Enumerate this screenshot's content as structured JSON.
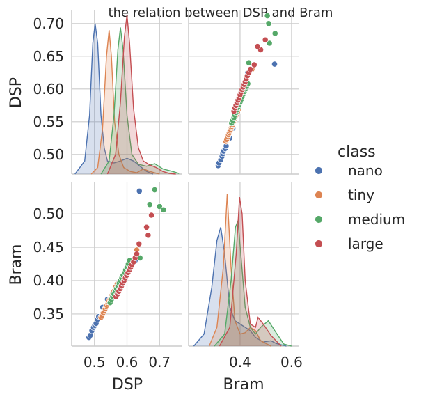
{
  "chart_data": {
    "type": "pairplot",
    "title": "the relation between DSP and Bram",
    "variables": [
      "DSP",
      "Bram"
    ],
    "axes": {
      "DSP": {
        "ticks": [
          0.5,
          0.6,
          0.7
        ],
        "tick_labels": [
          "0.5",
          "0.6",
          "0.7"
        ],
        "y_ticks": [
          0.5,
          0.55,
          0.6,
          0.65,
          0.7
        ],
        "y_tick_labels": [
          "0.50",
          "0.55",
          "0.60",
          "0.65",
          "0.70"
        ],
        "range": [
          0.43,
          0.77
        ],
        "y_range": [
          0.47,
          0.72
        ]
      },
      "Bram": {
        "ticks": [
          0.4,
          0.6
        ],
        "tick_labels": [
          "0.4",
          "0.6"
        ],
        "x_range": [
          0.2,
          0.63
        ],
        "y_ticks": [
          0.35,
          0.4,
          0.45,
          0.5
        ],
        "y_tick_labels": [
          "0.35",
          "0.40",
          "0.45",
          "0.50"
        ],
        "y_range": [
          0.302,
          0.547
        ]
      }
    },
    "grid": true,
    "legend": {
      "title": "class",
      "placement": "right"
    },
    "series": [
      {
        "name": "nano",
        "color": "#4c72b0",
        "DSP": [
          0.483,
          0.487,
          0.492,
          0.497,
          0.501,
          0.505,
          0.509,
          0.513,
          0.525,
          0.54,
          0.555,
          0.565,
          0.575,
          0.585,
          0.595,
          0.61,
          0.625,
          0.638
        ],
        "Bram": [
          0.315,
          0.318,
          0.325,
          0.33,
          0.333,
          0.336,
          0.342,
          0.346,
          0.36,
          0.372,
          0.38,
          0.388,
          0.395,
          0.404,
          0.41,
          0.42,
          0.43,
          0.534
        ],
        "dsp_kde": {
          "peak": 0.7,
          "points": [
            [
              0.44,
              0.47
            ],
            [
              0.47,
              0.49
            ],
            [
              0.485,
              0.56
            ],
            [
              0.495,
              0.67
            ],
            [
              0.502,
              0.7
            ],
            [
              0.51,
              0.67
            ],
            [
              0.52,
              0.56
            ],
            [
              0.53,
              0.51
            ],
            [
              0.54,
              0.49
            ],
            [
              0.56,
              0.487
            ],
            [
              0.58,
              0.49
            ],
            [
              0.6,
              0.494
            ],
            [
              0.62,
              0.49
            ],
            [
              0.64,
              0.482
            ],
            [
              0.66,
              0.474
            ],
            [
              0.68,
              0.47
            ]
          ]
        },
        "bram_kde": {
          "points": [
            [
              0.22,
              0.302
            ],
            [
              0.26,
              0.32
            ],
            [
              0.29,
              0.39
            ],
            [
              0.31,
              0.46
            ],
            [
              0.325,
              0.48
            ],
            [
              0.34,
              0.44
            ],
            [
              0.36,
              0.36
            ],
            [
              0.38,
              0.34
            ],
            [
              0.4,
              0.335
            ],
            [
              0.42,
              0.33
            ],
            [
              0.44,
              0.325
            ],
            [
              0.46,
              0.315
            ],
            [
              0.49,
              0.308
            ],
            [
              0.52,
              0.31
            ],
            [
              0.54,
              0.306
            ],
            [
              0.58,
              0.302
            ]
          ]
        }
      },
      {
        "name": "tiny",
        "color": "#dd8452",
        "DSP": [
          0.52,
          0.523,
          0.527,
          0.53,
          0.533,
          0.536,
          0.538,
          0.541,
          0.543,
          0.545,
          0.548,
          0.551,
          0.554,
          0.557,
          0.56,
          0.565,
          0.57,
          0.584,
          0.6,
          0.63
        ],
        "Bram": [
          0.345,
          0.348,
          0.352,
          0.355,
          0.358,
          0.361,
          0.363,
          0.366,
          0.368,
          0.37,
          0.372,
          0.375,
          0.378,
          0.381,
          0.384,
          0.39,
          0.395,
          0.403,
          0.412,
          0.446
        ],
        "dsp_kde": {
          "points": [
            [
              0.49,
              0.47
            ],
            [
              0.51,
              0.48
            ],
            [
              0.525,
              0.54
            ],
            [
              0.537,
              0.65
            ],
            [
              0.545,
              0.69
            ],
            [
              0.552,
              0.65
            ],
            [
              0.562,
              0.55
            ],
            [
              0.575,
              0.5
            ],
            [
              0.59,
              0.48
            ],
            [
              0.61,
              0.474
            ],
            [
              0.63,
              0.472
            ],
            [
              0.65,
              0.478
            ],
            [
              0.67,
              0.474
            ],
            [
              0.7,
              0.47
            ]
          ]
        },
        "bram_kde": {
          "points": [
            [
              0.28,
              0.302
            ],
            [
              0.31,
              0.33
            ],
            [
              0.335,
              0.42
            ],
            [
              0.35,
              0.53
            ],
            [
              0.365,
              0.42
            ],
            [
              0.38,
              0.34
            ],
            [
              0.4,
              0.32
            ],
            [
              0.42,
              0.322
            ],
            [
              0.44,
              0.33
            ],
            [
              0.46,
              0.325
            ],
            [
              0.48,
              0.31
            ],
            [
              0.52,
              0.302
            ]
          ]
        }
      },
      {
        "name": "medium",
        "color": "#55a868",
        "DSP": [
          0.548,
          0.552,
          0.556,
          0.56,
          0.564,
          0.568,
          0.572,
          0.576,
          0.58,
          0.584,
          0.588,
          0.592,
          0.596,
          0.6,
          0.604,
          0.608,
          0.64,
          0.67,
          0.685,
          0.7,
          0.712
        ],
        "Bram": [
          0.367,
          0.372,
          0.376,
          0.38,
          0.384,
          0.388,
          0.392,
          0.396,
          0.4,
          0.404,
          0.408,
          0.412,
          0.416,
          0.42,
          0.425,
          0.43,
          0.434,
          0.514,
          0.536,
          0.511,
          0.506
        ],
        "dsp_kde": {
          "points": [
            [
              0.52,
              0.47
            ],
            [
              0.545,
              0.49
            ],
            [
              0.56,
              0.56
            ],
            [
              0.572,
              0.66
            ],
            [
              0.58,
              0.694
            ],
            [
              0.588,
              0.66
            ],
            [
              0.6,
              0.56
            ],
            [
              0.615,
              0.5
            ],
            [
              0.635,
              0.485
            ],
            [
              0.66,
              0.482
            ],
            [
              0.685,
              0.486
            ],
            [
              0.71,
              0.478
            ],
            [
              0.74,
              0.474
            ],
            [
              0.76,
              0.471
            ]
          ]
        },
        "bram_kde": {
          "points": [
            [
              0.3,
              0.302
            ],
            [
              0.34,
              0.32
            ],
            [
              0.365,
              0.4
            ],
            [
              0.382,
              0.48
            ],
            [
              0.392,
              0.49
            ],
            [
              0.405,
              0.43
            ],
            [
              0.42,
              0.36
            ],
            [
              0.44,
              0.33
            ],
            [
              0.46,
              0.32
            ],
            [
              0.48,
              0.33
            ],
            [
              0.51,
              0.34
            ],
            [
              0.54,
              0.322
            ],
            [
              0.57,
              0.305
            ],
            [
              0.6,
              0.302
            ]
          ]
        }
      },
      {
        "name": "large",
        "color": "#c44e52",
        "DSP": [
          0.566,
          0.571,
          0.575,
          0.579,
          0.583,
          0.587,
          0.591,
          0.595,
          0.599,
          0.603,
          0.607,
          0.611,
          0.615,
          0.62,
          0.625,
          0.63,
          0.637,
          0.66,
          0.675,
          0.665
        ],
        "Bram": [
          0.376,
          0.38,
          0.384,
          0.388,
          0.392,
          0.396,
          0.4,
          0.404,
          0.408,
          0.412,
          0.416,
          0.42,
          0.424,
          0.428,
          0.434,
          0.44,
          0.455,
          0.48,
          0.498,
          0.468
        ],
        "dsp_kde": {
          "points": [
            [
              0.54,
              0.47
            ],
            [
              0.565,
              0.5
            ],
            [
              0.58,
              0.58
            ],
            [
              0.592,
              0.68
            ],
            [
              0.6,
              0.713
            ],
            [
              0.608,
              0.67
            ],
            [
              0.62,
              0.57
            ],
            [
              0.635,
              0.51
            ],
            [
              0.65,
              0.49
            ],
            [
              0.67,
              0.484
            ],
            [
              0.69,
              0.48
            ],
            [
              0.71,
              0.474
            ],
            [
              0.73,
              0.471
            ],
            [
              0.75,
              0.47
            ]
          ]
        },
        "bram_kde": {
          "points": [
            [
              0.32,
              0.302
            ],
            [
              0.36,
              0.33
            ],
            [
              0.385,
              0.44
            ],
            [
              0.398,
              0.525
            ],
            [
              0.408,
              0.5
            ],
            [
              0.42,
              0.4
            ],
            [
              0.44,
              0.335
            ],
            [
              0.46,
              0.33
            ],
            [
              0.47,
              0.345
            ],
            [
              0.49,
              0.335
            ],
            [
              0.52,
              0.318
            ],
            [
              0.56,
              0.302
            ]
          ]
        }
      }
    ]
  }
}
